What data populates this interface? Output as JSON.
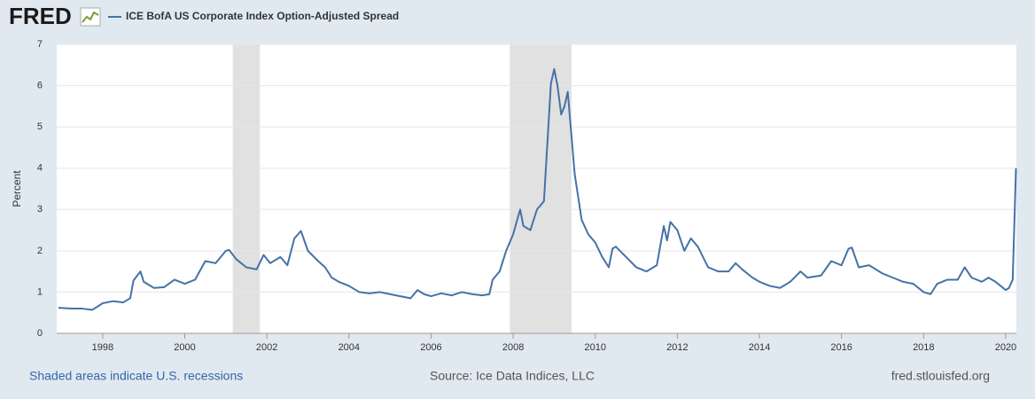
{
  "logo": "FRED",
  "chart_data": {
    "type": "line",
    "ylabel": "Percent",
    "x": [
      1996.92,
      1997.25,
      1997.5,
      1997.75,
      1998.0,
      1998.25,
      1998.5,
      1998.67,
      1998.75,
      1998.92,
      1999.0,
      1999.25,
      1999.5,
      1999.75,
      2000.0,
      2000.25,
      2000.5,
      2000.75,
      2001.0,
      2001.08,
      2001.25,
      2001.5,
      2001.75,
      2001.92,
      2002.08,
      2002.33,
      2002.5,
      2002.67,
      2002.83,
      2003.0,
      2003.25,
      2003.42,
      2003.58,
      2003.75,
      2004.0,
      2004.25,
      2004.5,
      2004.75,
      2005.0,
      2005.25,
      2005.5,
      2005.67,
      2005.83,
      2006.0,
      2006.25,
      2006.5,
      2006.75,
      2007.0,
      2007.25,
      2007.42,
      2007.5,
      2007.67,
      2007.83,
      2008.0,
      2008.17,
      2008.25,
      2008.42,
      2008.58,
      2008.75,
      2008.92,
      2009.0,
      2009.08,
      2009.17,
      2009.25,
      2009.33,
      2009.5,
      2009.67,
      2009.83,
      2010.0,
      2010.17,
      2010.33,
      2010.42,
      2010.5,
      2010.75,
      2011.0,
      2011.25,
      2011.5,
      2011.67,
      2011.75,
      2011.83,
      2012.0,
      2012.17,
      2012.33,
      2012.5,
      2012.75,
      2013.0,
      2013.25,
      2013.42,
      2013.58,
      2013.83,
      2014.0,
      2014.25,
      2014.5,
      2014.75,
      2015.0,
      2015.17,
      2015.5,
      2015.75,
      2016.0,
      2016.17,
      2016.25,
      2016.42,
      2016.67,
      2017.0,
      2017.25,
      2017.5,
      2017.75,
      2018.0,
      2018.17,
      2018.33,
      2018.58,
      2018.83,
      2019.0,
      2019.17,
      2019.42,
      2019.58,
      2019.75,
      2020.0,
      2020.08,
      2020.17,
      2020.25
    ],
    "series": [
      {
        "name": "ICE BofA US Corporate Index Option-Adjusted Spread",
        "color": "#4572a7",
        "values": [
          0.62,
          0.6,
          0.6,
          0.57,
          0.73,
          0.78,
          0.75,
          0.85,
          1.28,
          1.5,
          1.25,
          1.1,
          1.12,
          1.3,
          1.2,
          1.3,
          1.75,
          1.7,
          2.0,
          2.02,
          1.8,
          1.6,
          1.55,
          1.9,
          1.7,
          1.85,
          1.65,
          2.3,
          2.48,
          2.0,
          1.75,
          1.6,
          1.35,
          1.25,
          1.15,
          1.0,
          0.97,
          1.0,
          0.95,
          0.9,
          0.85,
          1.05,
          0.95,
          0.9,
          0.97,
          0.92,
          1.0,
          0.95,
          0.92,
          0.95,
          1.3,
          1.5,
          2.0,
          2.4,
          3.0,
          2.6,
          2.5,
          3.0,
          3.2,
          6.05,
          6.4,
          6.0,
          5.3,
          5.5,
          5.85,
          3.85,
          2.75,
          2.4,
          2.2,
          1.85,
          1.6,
          2.05,
          2.1,
          1.85,
          1.6,
          1.5,
          1.65,
          2.6,
          2.25,
          2.7,
          2.5,
          2.0,
          2.3,
          2.1,
          1.6,
          1.5,
          1.5,
          1.7,
          1.55,
          1.35,
          1.25,
          1.15,
          1.1,
          1.25,
          1.5,
          1.35,
          1.4,
          1.75,
          1.65,
          2.05,
          2.08,
          1.6,
          1.65,
          1.45,
          1.35,
          1.25,
          1.2,
          1.0,
          0.95,
          1.2,
          1.3,
          1.3,
          1.6,
          1.35,
          1.25,
          1.35,
          1.25,
          1.05,
          1.1,
          1.3,
          4.0
        ]
      }
    ],
    "recessions": [
      [
        2001.17,
        2001.83
      ],
      [
        2007.92,
        2009.42
      ]
    ],
    "xlim": [
      1996.88,
      2020.26
    ],
    "xticks": [
      1998,
      2000,
      2002,
      2004,
      2006,
      2008,
      2010,
      2012,
      2014,
      2016,
      2018,
      2020
    ],
    "ylim": [
      0,
      7
    ],
    "yticks": [
      0,
      1,
      2,
      3,
      4,
      5,
      6,
      7
    ],
    "grid": true,
    "notes": [
      "Shaded areas indicate U.S. recessions",
      "Source: Ice Data Indices, LLC",
      "fred.stlouisfed.org"
    ]
  }
}
